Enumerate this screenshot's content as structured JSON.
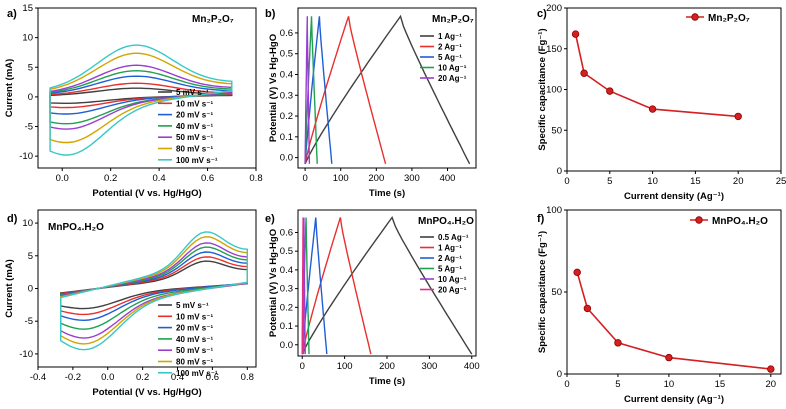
{
  "figure": {
    "panels": [
      {
        "id": "a",
        "letter": "a)",
        "label": "Mn₂P₂O₇",
        "xlabel": "Potential (V vs. Hg/HgO)",
        "ylabel": "Current (mA)",
        "xticks": [
          "0.0",
          "0.2",
          "0.4",
          "0.6",
          "0.8"
        ],
        "yticks": [
          "-10",
          "-5",
          "0",
          "5",
          "10",
          "15"
        ],
        "legend": [
          "5 mV s⁻¹",
          "10 mV s⁻¹",
          "20 mV s⁻¹",
          "40 mV s⁻¹",
          "50 mV s⁻¹",
          "80 mV s⁻¹",
          "100 mV s⁻¹"
        ]
      },
      {
        "id": "b",
        "letter": "b)",
        "label": "Mn₂P₂O₇",
        "xlabel": "Time (s)",
        "ylabel": "Potential (V) Vs Hg-HgO",
        "xticks": [
          "0",
          "100",
          "200",
          "300",
          "400"
        ],
        "yticks": [
          "0.0",
          "0.1",
          "0.2",
          "0.3",
          "0.4",
          "0.5",
          "0.6"
        ],
        "legend": [
          "1 Ag⁻¹",
          "2 Ag⁻¹",
          "5 Ag⁻¹",
          "10 Ag⁻¹",
          "20 Ag⁻¹"
        ]
      },
      {
        "id": "c",
        "letter": "c)",
        "label": "Mn₂P₂O₇",
        "xlabel": "Current density (Ag⁻¹)",
        "ylabel": "Specific capacitance (Fg⁻¹)",
        "xticks": [
          "0",
          "5",
          "10",
          "15",
          "20",
          "25"
        ],
        "yticks": [
          "0",
          "50",
          "100",
          "150",
          "200"
        ],
        "legend": [
          "Mn₂P₂O₇"
        ]
      },
      {
        "id": "d",
        "letter": "d)",
        "label": "MnPO₄.H₂O",
        "xlabel": "Potential (V vs. Hg/HgO)",
        "ylabel": "Current (mA)",
        "xticks": [
          "-0.4",
          "-0.2",
          "0.0",
          "0.2",
          "0.4",
          "0.6",
          "0.8"
        ],
        "yticks": [
          "-10",
          "-5",
          "0",
          "5",
          "10"
        ],
        "legend": [
          "5 mV s⁻¹",
          "10 mV s⁻¹",
          "20 mV s⁻¹",
          "40 mV s⁻¹",
          "50 mV s⁻¹",
          "80 mV s⁻¹",
          "100 mV s⁻¹"
        ]
      },
      {
        "id": "e",
        "letter": "e)",
        "label": "MnPO₄.H₂O",
        "xlabel": "Time (s)",
        "ylabel": "Potential (V) Vs Hg-HgO",
        "xticks": [
          "0",
          "100",
          "200",
          "300",
          "400"
        ],
        "yticks": [
          "0.0",
          "0.1",
          "0.2",
          "0.3",
          "0.4",
          "0.5",
          "0.6"
        ],
        "legend": [
          "0.5 Ag⁻¹",
          "1 Ag⁻¹",
          "2 Ag⁻¹",
          "5 Ag⁻¹",
          "10 Ag⁻¹",
          "20 Ag⁻¹"
        ]
      },
      {
        "id": "f",
        "letter": "f)",
        "label": "MnPO₄.H₂O",
        "xlabel": "Current density (Ag⁻¹)",
        "ylabel": "Specific capacitance (Fg⁻¹)",
        "xticks": [
          "0",
          "5",
          "10",
          "15",
          "20"
        ],
        "yticks": [
          "0",
          "50",
          "100"
        ],
        "legend": [
          "MnPO₄.H₂O"
        ]
      }
    ]
  },
  "colors": {
    "cv": [
      "#404040",
      "#e8302e",
      "#1f5fd6",
      "#20a050",
      "#9b3ed0",
      "#d4a400",
      "#38c8c8"
    ],
    "gcd": [
      "#404040",
      "#e8302e",
      "#1f5fd6",
      "#20a050",
      "#9b3ed0",
      "#e0308a"
    ],
    "cap": "#d42020"
  },
  "chart_data": [
    {
      "id": "a",
      "type": "line",
      "xlim": [
        -0.1,
        0.8
      ],
      "ylim": [
        -12,
        15
      ],
      "series": [
        {
          "name": "5 mV s⁻¹",
          "max": 1.6,
          "min": -1.2
        },
        {
          "name": "10 mV s⁻¹",
          "max": 2.5,
          "min": -2.0
        },
        {
          "name": "20 mV s⁻¹",
          "max": 3.8,
          "min": -3.2
        },
        {
          "name": "40 mV s⁻¹",
          "max": 4.8,
          "min": -5.0
        },
        {
          "name": "50 mV s⁻¹",
          "max": 5.8,
          "min": -6.0
        },
        {
          "name": "80 mV s⁻¹",
          "max": 8.0,
          "min": -8.5
        },
        {
          "name": "100 mV s⁻¹",
          "max": 9.5,
          "min": -10.8
        }
      ]
    },
    {
      "id": "b",
      "type": "line",
      "xlim": [
        -20,
        480
      ],
      "ylim": [
        -0.05,
        0.72
      ],
      "series": [
        {
          "name": "1 Ag⁻¹",
          "charge_end": 268,
          "discharge_end": 462
        },
        {
          "name": "2 Ag⁻¹",
          "charge_end": 122,
          "discharge_end": 226
        },
        {
          "name": "5 Ag⁻¹",
          "charge_end": 40,
          "discharge_end": 75
        },
        {
          "name": "10 Ag⁻¹",
          "charge_end": 18,
          "discharge_end": 34
        },
        {
          "name": "20 Ag⁻¹",
          "charge_end": 6,
          "discharge_end": 12
        }
      ]
    },
    {
      "id": "c",
      "type": "line",
      "xlim": [
        0,
        25
      ],
      "ylim": [
        0,
        200
      ],
      "x": [
        1,
        2,
        5,
        10,
        20
      ],
      "values": [
        168,
        120,
        98,
        76,
        67
      ]
    },
    {
      "id": "d",
      "type": "line",
      "xlim": [
        -0.4,
        0.85
      ],
      "ylim": [
        -12,
        12
      ],
      "series": [
        {
          "name": "5 mV s⁻¹",
          "max": 4.5,
          "min": -3.5
        },
        {
          "name": "10 mV s⁻¹",
          "max": 5.2,
          "min": -4.5
        },
        {
          "name": "20 mV s⁻¹",
          "max": 6.0,
          "min": -5.5
        },
        {
          "name": "40 mV s⁻¹",
          "max": 6.8,
          "min": -7.0
        },
        {
          "name": "50 mV s⁻¹",
          "max": 7.5,
          "min": -8.5
        },
        {
          "name": "80 mV s⁻¹",
          "max": 8.5,
          "min": -9.5
        },
        {
          "name": "100 mV s⁻¹",
          "max": 9.3,
          "min": -10.5
        }
      ]
    },
    {
      "id": "e",
      "type": "line",
      "xlim": [
        -10,
        410
      ],
      "ylim": [
        -0.06,
        0.72
      ],
      "series": [
        {
          "name": "0.5 Ag⁻¹",
          "charge_end": 212,
          "discharge_end": 400
        },
        {
          "name": "1 Ag⁻¹",
          "charge_end": 90,
          "discharge_end": 162
        },
        {
          "name": "2 Ag⁻¹",
          "charge_end": 32,
          "discharge_end": 58
        },
        {
          "name": "5 Ag⁻¹",
          "charge_end": 9,
          "discharge_end": 16
        },
        {
          "name": "10 Ag⁻¹",
          "charge_end": 4,
          "discharge_end": 7
        },
        {
          "name": "20 Ag⁻¹",
          "charge_end": 2,
          "discharge_end": 3
        }
      ]
    },
    {
      "id": "f",
      "type": "line",
      "xlim": [
        0,
        21
      ],
      "ylim": [
        0,
        100
      ],
      "x": [
        1,
        2,
        5,
        10,
        20
      ],
      "values": [
        62,
        40,
        19,
        10,
        3
      ]
    }
  ]
}
